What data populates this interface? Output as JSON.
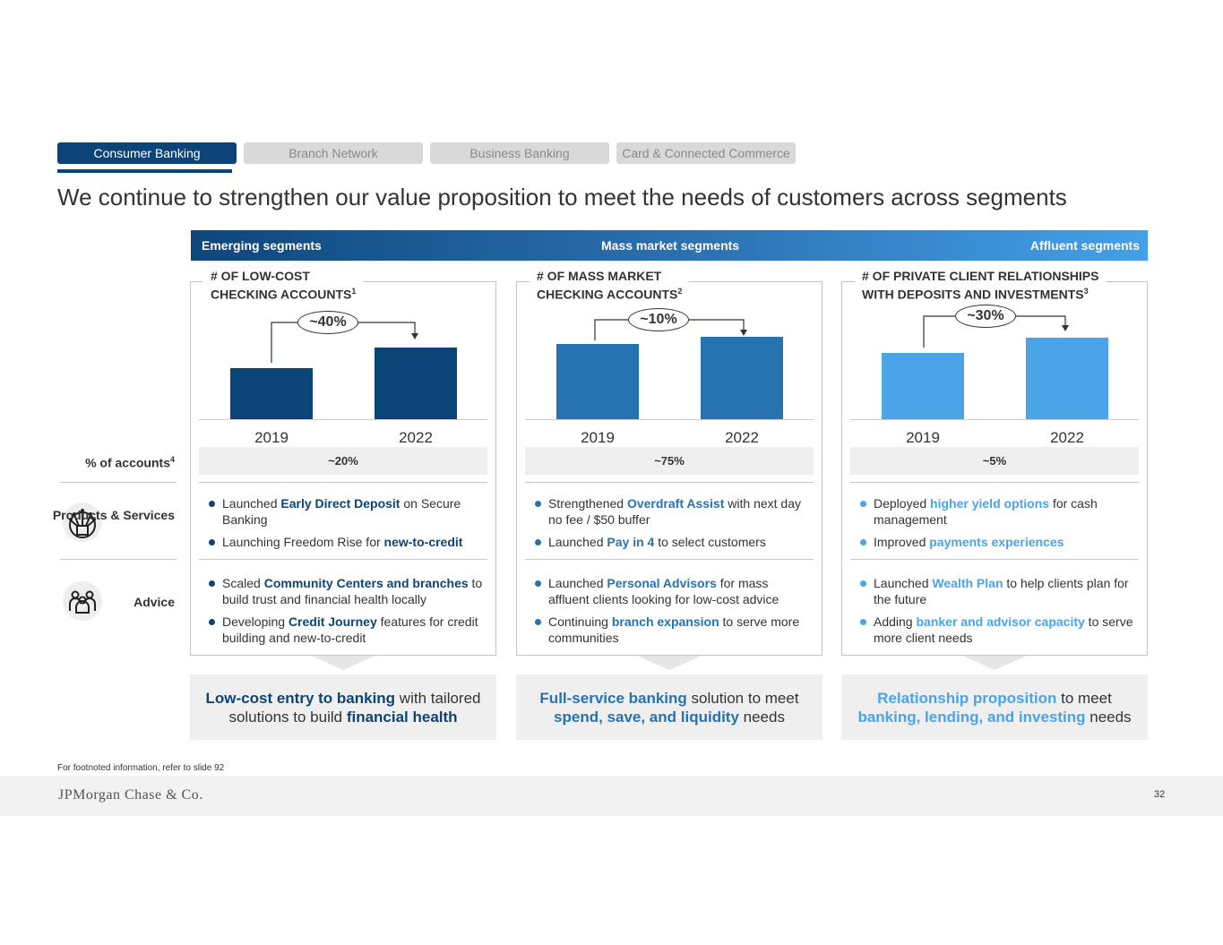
{
  "tabs": [
    "Consumer Banking",
    "Branch Network",
    "Business Banking",
    "Card & Connected Commerce"
  ],
  "title": "We continue to strengthen our value proposition to meet the needs of customers across segments",
  "segments": {
    "left": "Emerging segments",
    "center": "Mass market segments",
    "right": "Affluent segments"
  },
  "row_labels": {
    "pct": "% of accounts",
    "pct_sup": "4",
    "products": "Products & Services",
    "advice": "Advice"
  },
  "colors": {
    "emerging": "#0d4478",
    "mass": "#2773b1",
    "affluent": "#4ba3e8"
  },
  "columns": [
    {
      "title": "# OF LOW-COST",
      "title2": "CHECKING ACCOUNTS",
      "sup": "1",
      "growth": "~40%",
      "years": [
        "2019",
        "2022"
      ],
      "pct": "~20%",
      "products": [
        [
          [
            "Launched ",
            0
          ],
          [
            "Early Direct Deposit",
            1
          ],
          [
            " on Secure Banking",
            0
          ]
        ],
        [
          [
            "Launching Freedom Rise for ",
            0
          ],
          [
            "new-to-credit",
            1
          ]
        ]
      ],
      "advice": [
        [
          [
            "Scaled ",
            0
          ],
          [
            "Community Centers and branches",
            1
          ],
          [
            " to build trust and financial health locally",
            0
          ]
        ],
        [
          [
            "Developing ",
            0
          ],
          [
            "Credit Journey",
            1
          ],
          [
            " features for credit building and new-to-credit",
            0
          ]
        ]
      ],
      "summary": [
        [
          "Low-cost entry to banking",
          1
        ],
        [
          " with tailored solutions to build ",
          0
        ],
        [
          "financial health",
          1
        ]
      ]
    },
    {
      "title": "# OF MASS MARKET",
      "title2": "CHECKING ACCOUNTS",
      "sup": "2",
      "growth": "~10%",
      "years": [
        "2019",
        "2022"
      ],
      "pct": "~75%",
      "products": [
        [
          [
            "Strengthened ",
            0
          ],
          [
            "Overdraft Assist",
            1
          ],
          [
            " with next day no fee / $50 buffer",
            0
          ]
        ],
        [
          [
            "Launched ",
            0
          ],
          [
            "Pay in 4",
            1
          ],
          [
            " to select customers",
            0
          ]
        ]
      ],
      "advice": [
        [
          [
            "Launched ",
            0
          ],
          [
            "Personal Advisors",
            1
          ],
          [
            " for mass affluent clients looking for low-cost advice",
            0
          ]
        ],
        [
          [
            "Continuing ",
            0
          ],
          [
            "branch expansion",
            1
          ],
          [
            " to serve more communities",
            0
          ]
        ]
      ],
      "summary": [
        [
          "Full-service banking",
          1
        ],
        [
          " solution to meet ",
          0
        ],
        [
          "spend, save, and liquidity",
          1
        ],
        [
          " needs",
          0
        ]
      ]
    },
    {
      "title": "# OF PRIVATE CLIENT RELATIONSHIPS",
      "title2": "WITH DEPOSITS AND INVESTMENTS",
      "sup": "3",
      "growth": "~30%",
      "years": [
        "2019",
        "2022"
      ],
      "pct": "~5%",
      "products": [
        [
          [
            "Deployed ",
            0
          ],
          [
            "higher yield options",
            1
          ],
          [
            " for cash management",
            0
          ]
        ],
        [
          [
            "Improved ",
            0
          ],
          [
            "payments experiences",
            1
          ]
        ]
      ],
      "advice": [
        [
          [
            "Launched ",
            0
          ],
          [
            "Wealth Plan",
            1
          ],
          [
            " to help clients plan for the future",
            0
          ]
        ],
        [
          [
            "Adding ",
            0
          ],
          [
            "banker and advisor capacity",
            1
          ],
          [
            " to serve more client needs",
            0
          ]
        ]
      ],
      "summary": [
        [
          "Relationship proposition",
          1
        ],
        [
          " to meet ",
          0
        ],
        [
          "banking, lending, and investing",
          1
        ],
        [
          " needs",
          0
        ]
      ]
    }
  ],
  "footnote": "For footnoted information, refer to slide 92",
  "logo": "JPMorgan Chase & Co.",
  "page": "32"
}
